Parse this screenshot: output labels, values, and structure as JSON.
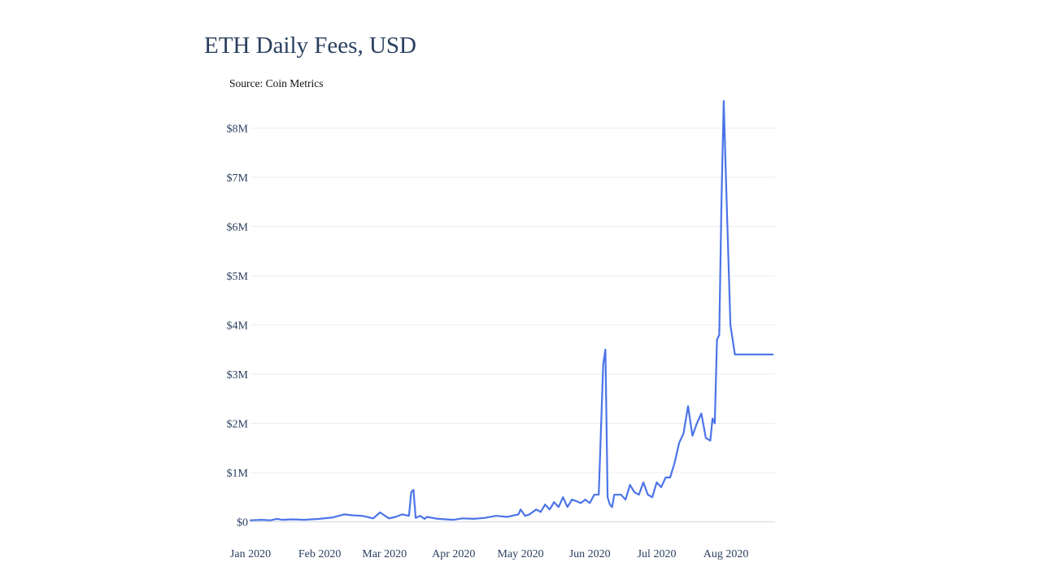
{
  "chart_data": {
    "type": "line",
    "title": "ETH Daily Fees, USD",
    "source": "Source: Coin Metrics",
    "xlabel": "",
    "ylabel": "",
    "xlim": [
      "2020-01-01",
      "2020-08-23"
    ],
    "ylim": [
      0,
      8800000
    ],
    "grid": true,
    "y_ticks": [
      {
        "value": 0,
        "label": "$0"
      },
      {
        "value": 1000000,
        "label": "$1M"
      },
      {
        "value": 2000000,
        "label": "$2M"
      },
      {
        "value": 3000000,
        "label": "$3M"
      },
      {
        "value": 4000000,
        "label": "$4M"
      },
      {
        "value": 5000000,
        "label": "$5M"
      },
      {
        "value": 6000000,
        "label": "$6M"
      },
      {
        "value": 7000000,
        "label": "$7M"
      },
      {
        "value": 8000000,
        "label": "$8M"
      }
    ],
    "x_ticks": [
      {
        "date": "2020-01-01",
        "label": "Jan 2020"
      },
      {
        "date": "2020-02-01",
        "label": "Feb 2020"
      },
      {
        "date": "2020-03-01",
        "label": "Mar 2020"
      },
      {
        "date": "2020-04-01",
        "label": "Apr 2020"
      },
      {
        "date": "2020-05-01",
        "label": "May 2020"
      },
      {
        "date": "2020-06-01",
        "label": "Jun 2020"
      },
      {
        "date": "2020-07-01",
        "label": "Jul 2020"
      },
      {
        "date": "2020-08-01",
        "label": "Aug 2020"
      }
    ],
    "series": [
      {
        "color": "#4b74e8",
        "x": [
          "2020-01-01",
          "2020-01-06",
          "2020-01-10",
          "2020-01-13",
          "2020-01-15",
          "2020-01-20",
          "2020-01-25",
          "2020-02-01",
          "2020-02-07",
          "2020-02-12",
          "2020-02-16",
          "2020-02-20",
          "2020-02-25",
          "2020-02-28",
          "2020-03-03",
          "2020-03-06",
          "2020-03-09",
          "2020-03-12",
          "2020-03-13",
          "2020-03-14",
          "2020-03-15",
          "2020-03-17",
          "2020-03-19",
          "2020-03-20",
          "2020-03-25",
          "2020-04-01",
          "2020-04-05",
          "2020-04-10",
          "2020-04-15",
          "2020-04-20",
          "2020-04-25",
          "2020-04-30",
          "2020-05-01",
          "2020-05-03",
          "2020-05-05",
          "2020-05-08",
          "2020-05-10",
          "2020-05-12",
          "2020-05-14",
          "2020-05-16",
          "2020-05-18",
          "2020-05-20",
          "2020-05-22",
          "2020-05-24",
          "2020-05-26",
          "2020-05-28",
          "2020-05-30",
          "2020-06-01",
          "2020-06-03",
          "2020-06-05",
          "2020-06-07",
          "2020-06-08",
          "2020-06-09",
          "2020-06-10",
          "2020-06-11",
          "2020-06-12",
          "2020-06-13",
          "2020-06-15",
          "2020-06-17",
          "2020-06-19",
          "2020-06-21",
          "2020-06-23",
          "2020-06-25",
          "2020-06-27",
          "2020-06-29",
          "2020-07-01",
          "2020-07-03",
          "2020-07-05",
          "2020-07-07",
          "2020-07-09",
          "2020-07-11",
          "2020-07-13",
          "2020-07-15",
          "2020-07-17",
          "2020-07-19",
          "2020-07-21",
          "2020-07-23",
          "2020-07-25",
          "2020-07-26",
          "2020-07-27",
          "2020-07-28",
          "2020-07-29",
          "2020-07-30",
          "2020-07-31",
          "2020-08-01",
          "2020-08-03",
          "2020-08-05",
          "2020-08-06",
          "2020-08-07",
          "2020-08-08",
          "2020-08-10",
          "2020-08-11",
          "2020-08-12",
          "2020-08-13",
          "2020-08-14",
          "2020-08-15",
          "2020-08-16",
          "2020-08-17",
          "2020-08-18",
          "2020-08-19",
          "2020-08-20",
          "2020-08-21",
          "2020-08-22"
        ],
        "values": [
          30000,
          40000,
          30000,
          60000,
          40000,
          50000,
          40000,
          60000,
          90000,
          150000,
          130000,
          120000,
          70000,
          190000,
          70000,
          100000,
          150000,
          120000,
          600000,
          650000,
          80000,
          120000,
          60000,
          100000,
          60000,
          40000,
          70000,
          60000,
          80000,
          120000,
          100000,
          150000,
          250000,
          120000,
          150000,
          250000,
          200000,
          350000,
          250000,
          400000,
          300000,
          500000,
          300000,
          450000,
          420000,
          380000,
          450000,
          380000,
          550000,
          550000,
          3200000,
          3500000,
          500000,
          350000,
          300000,
          550000,
          550000,
          550000,
          450000,
          750000,
          600000,
          550000,
          800000,
          550000,
          500000,
          800000,
          700000,
          900000,
          900000,
          1200000,
          1600000,
          1800000,
          2350000,
          1750000,
          2000000,
          2200000,
          1700000,
          1650000,
          2100000,
          2000000,
          3700000,
          3800000,
          6500000,
          8550000,
          7000000,
          4000000,
          3400000,
          3400000,
          3400000,
          3400000,
          3400000,
          3400000,
          3400000,
          3400000,
          3400000,
          3400000,
          3400000,
          3400000,
          3400000,
          3400000,
          3400000,
          3400000,
          3400000
        ]
      }
    ]
  }
}
